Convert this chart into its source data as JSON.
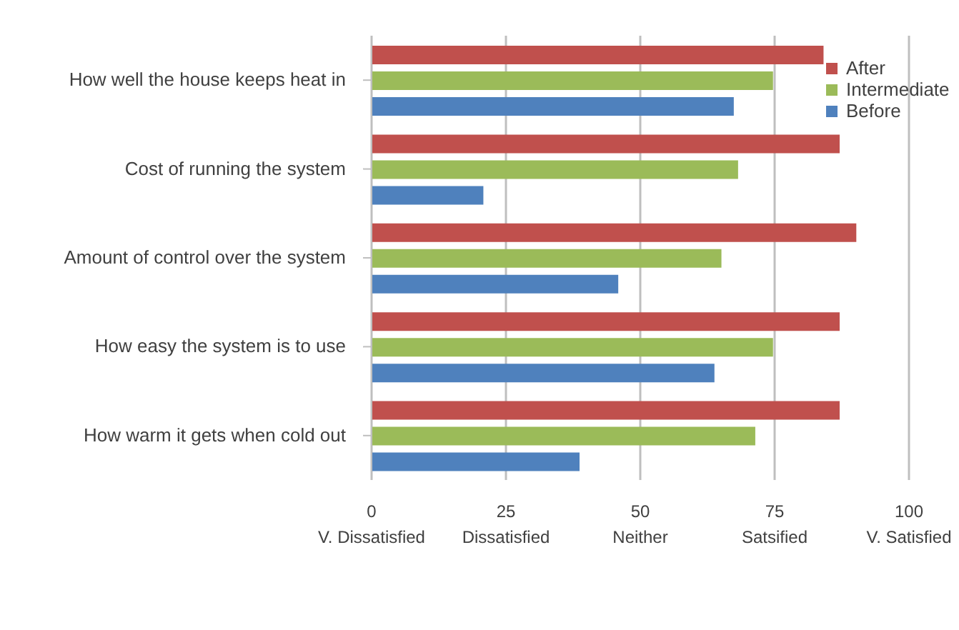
{
  "chart_data": {
    "type": "bar",
    "orientation": "horizontal",
    "categories": [
      "How well the house keeps heat in",
      "Cost of running the system",
      "Amount of control over the system",
      "How easy the system is to use",
      "How warm it gets when cold out"
    ],
    "series": [
      {
        "name": "After",
        "color": "#c0504d",
        "values": [
          84.1,
          87.1,
          90.2,
          87.1,
          87.1
        ]
      },
      {
        "name": "Intermediate",
        "color": "#9bbb59",
        "values": [
          74.7,
          68.2,
          65.1,
          74.7,
          71.4
        ]
      },
      {
        "name": "Before",
        "color": "#4f81bd",
        "values": [
          67.4,
          20.8,
          45.9,
          63.8,
          38.7
        ]
      }
    ],
    "xlim": [
      0,
      100
    ],
    "xticks": [
      {
        "value": 0,
        "label": "0\nV. Dissatisfied"
      },
      {
        "value": 25,
        "label": "25\nDissatisfied"
      },
      {
        "value": 50,
        "label": "50\nNeither"
      },
      {
        "value": 75,
        "label": "75\nSatsified"
      },
      {
        "value": 100,
        "label": "100\nV. Satisfied"
      }
    ],
    "grid": "x",
    "legend": "top right"
  }
}
